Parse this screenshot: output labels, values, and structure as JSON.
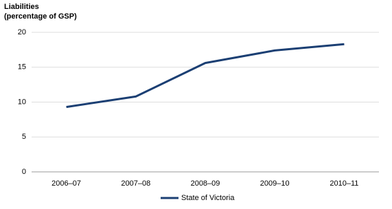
{
  "chart_data": {
    "type": "line",
    "ylabel": [
      "Liabilities",
      "(percentage of GSP)"
    ],
    "categories": [
      "2006–07",
      "2007–08",
      "2008–09",
      "2009–10",
      "2010–11"
    ],
    "series": [
      {
        "name": "State of Victoria",
        "color": "#1b3f73",
        "values": [
          9.3,
          10.8,
          15.6,
          17.4,
          18.3
        ]
      }
    ],
    "ylim": [
      0,
      20
    ],
    "yticks": [
      0,
      5,
      10,
      15,
      20
    ],
    "grid": true,
    "legend": "bottom"
  }
}
